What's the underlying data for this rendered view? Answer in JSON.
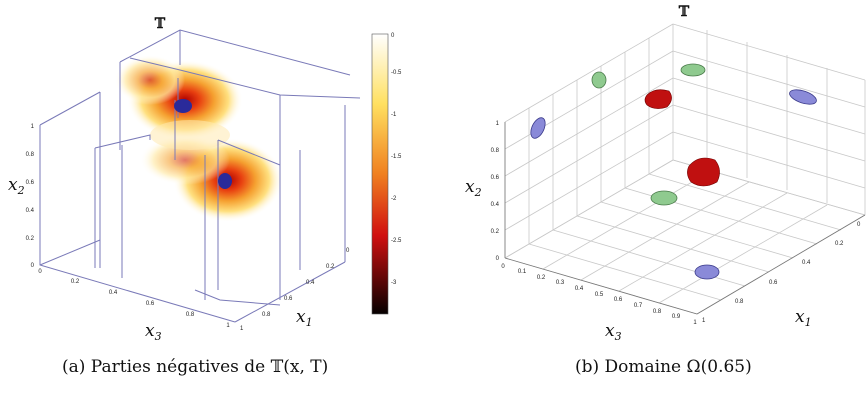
{
  "figure": {
    "panels": [
      {
        "id": "a",
        "title": "𝕋",
        "caption": "(a) Parties négatives de 𝕋(x, T)",
        "x3_label": "x",
        "x3_sub": "3",
        "x2_label": "x",
        "x2_sub": "2",
        "x1_label": "x",
        "x1_sub": "1",
        "x2_ticks": [
          "0",
          "0.2",
          "0.4",
          "0.6",
          "0.8",
          "1"
        ],
        "x3_ticks": [
          "0",
          "0.2",
          "0.4",
          "0.6",
          "0.8",
          "1"
        ],
        "x1_ticks": [
          "0",
          "0.2",
          "0.4",
          "0.6",
          "0.8",
          "1"
        ],
        "colorbar_ticks": [
          "0",
          "-0.5",
          "-1",
          "-1.5",
          "-2",
          "-2.5",
          "-3"
        ]
      },
      {
        "id": "b",
        "title": "𝕋",
        "caption": "(b) Domaine Ω(0.65)",
        "x3_label": "x",
        "x3_sub": "3",
        "x2_label": "x",
        "x2_sub": "2",
        "x1_label": "x",
        "x1_sub": "1",
        "x2_ticks": [
          "0",
          "0.2",
          "0.4",
          "0.6",
          "0.8",
          "1"
        ],
        "x3_ticks": [
          "0",
          "0.1",
          "0.2",
          "0.3",
          "0.4",
          "0.5",
          "0.6",
          "0.7",
          "0.8",
          "0.9",
          "1"
        ],
        "x1_ticks": [
          "0",
          "0.2",
          "0.4",
          "0.6",
          "0.8",
          "1"
        ]
      }
    ],
    "colors": {
      "box_line": "#8a8ac8",
      "grid_line": "#c8c8c8",
      "hot_yellow": "#fff3a0",
      "hot_orange": "#f08a20",
      "hot_red": "#c81010",
      "blue_marker": "#2a2a9a",
      "green_blob": "#7fbf7f",
      "blue_blob": "#8a8ad8",
      "red_blob": "#c01010"
    }
  }
}
